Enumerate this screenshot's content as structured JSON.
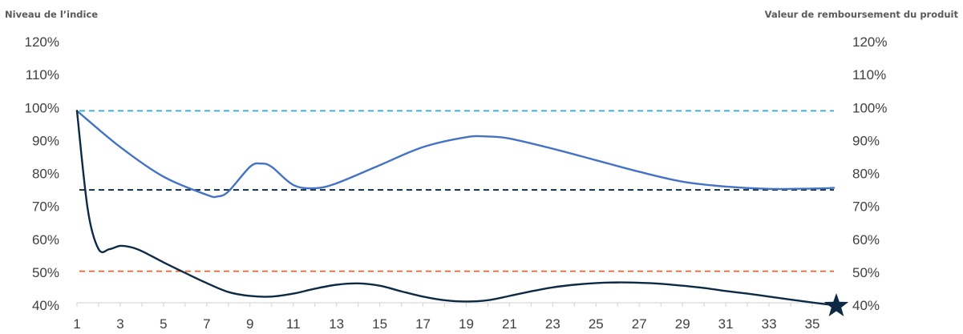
{
  "chart_data": {
    "type": "line",
    "left_axis_title": "Niveau de l’indice",
    "right_axis_title": "Valeur de remboursement du produit",
    "y_ticks": [
      40,
      50,
      60,
      70,
      80,
      90,
      100,
      110,
      120
    ],
    "ylim": [
      40,
      120
    ],
    "y_tick_format": "%",
    "x_range": [
      1,
      36
    ],
    "x_ticks": [
      1,
      3,
      5,
      7,
      9,
      11,
      13,
      15,
      17,
      19,
      21,
      23,
      25,
      27,
      29,
      31,
      33,
      35
    ],
    "grid": false,
    "series": [
      {
        "color": "#4472c4",
        "x": [
          1,
          3,
          5,
          7,
          7.5,
          8,
          9,
          9.5,
          10,
          11,
          12,
          13,
          15,
          17,
          19,
          20,
          21,
          23,
          25,
          27,
          29,
          31,
          33,
          35,
          36
        ],
        "values": [
          99,
          88,
          79,
          73.5,
          73,
          74.5,
          82,
          83,
          82,
          76.5,
          75.5,
          77,
          82.5,
          88,
          91,
          91.2,
          90.6,
          87.5,
          84,
          80.5,
          77.5,
          76,
          75.3,
          75.4,
          75.6
        ]
      },
      {
        "color": "#0d2a44",
        "x": [
          1,
          1.5,
          2,
          2.5,
          3,
          3.5,
          4,
          5,
          6,
          7,
          8,
          9,
          10,
          11,
          12,
          13,
          14,
          15,
          16,
          17,
          18,
          19,
          20,
          21,
          22,
          23,
          24,
          25,
          26,
          27,
          28,
          29,
          30,
          31,
          32,
          33,
          34,
          35,
          36
        ],
        "values": [
          99,
          69,
          57,
          57,
          58,
          57.6,
          56.4,
          53,
          49.8,
          46.7,
          44,
          42.8,
          42.6,
          43.5,
          45,
          46.2,
          46.6,
          45.9,
          44.2,
          42.6,
          41.5,
          41.1,
          41.5,
          42.8,
          44.2,
          45.4,
          46.2,
          46.7,
          46.9,
          46.8,
          46.5,
          45.9,
          45.2,
          44.3,
          43.5,
          42.6,
          41.7,
          40.8,
          40
        ]
      }
    ],
    "reference_lines": [
      {
        "value": 99,
        "color": "#2ea8d8",
        "style": "dashed"
      },
      {
        "value": 75,
        "color": "#0d2a44",
        "style": "dashed"
      },
      {
        "value": 50.3,
        "color": "#e8622a",
        "style": "dashed"
      }
    ],
    "marker": {
      "x": 36,
      "value": 40,
      "shape": "star",
      "color": "#0d2a44"
    }
  }
}
